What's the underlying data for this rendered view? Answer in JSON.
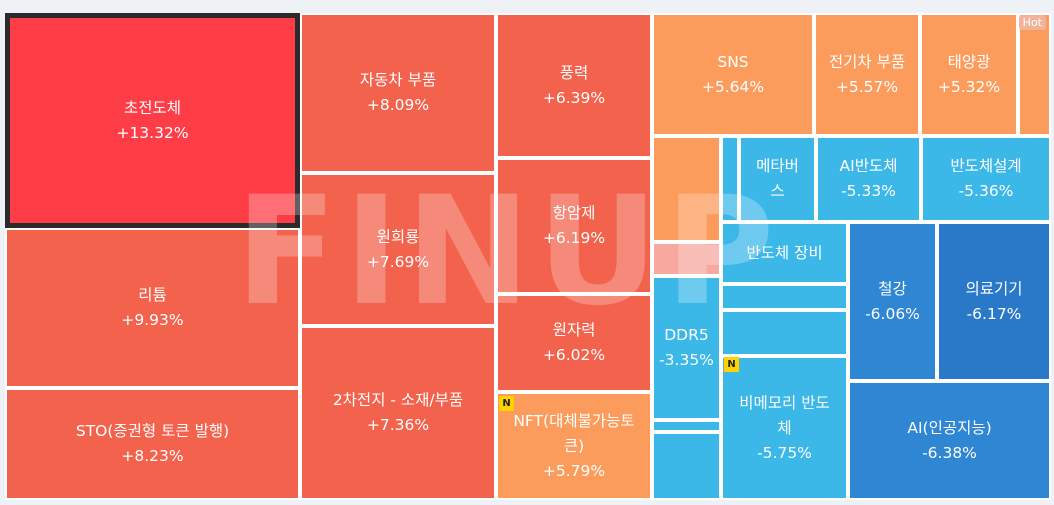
{
  "badges": {
    "new": "N",
    "hot": "Hot"
  },
  "watermark": "FINUP",
  "tiles": [
    {
      "name": "초전도체",
      "change": "+13.32%"
    },
    {
      "name": "리튬",
      "change": "+9.93%"
    },
    {
      "name": "STO(증권형 토큰 발행)",
      "change": "+8.23%"
    },
    {
      "name": "자동차 부품",
      "change": "+8.09%"
    },
    {
      "name": "원희룡",
      "change": "+7.69%"
    },
    {
      "name": "2차전지 - 소재/부품",
      "change": "+7.36%"
    },
    {
      "name": "풍력",
      "change": "+6.39%"
    },
    {
      "name": "항암제",
      "change": "+6.19%"
    },
    {
      "name": "원자력",
      "change": "+6.02%"
    },
    {
      "name": "NFT(대체불가능토큰)",
      "change": "+5.79%"
    },
    {
      "name": "SNS",
      "change": "+5.64%"
    },
    {
      "name": "전기차 부품",
      "change": "+5.57%"
    },
    {
      "name": "태양광",
      "change": "+5.32%"
    },
    {
      "name": "메타버스",
      "change": ""
    },
    {
      "name": "AI반도체",
      "change": "-5.33%"
    },
    {
      "name": "반도체설계",
      "change": "-5.36%"
    },
    {
      "name": "반도체 장비",
      "change": ""
    },
    {
      "name": "DDR5",
      "change": "-3.35%"
    },
    {
      "name": "철강",
      "change": "-6.06%"
    },
    {
      "name": "의료기기",
      "change": "-6.17%"
    },
    {
      "name": "비메모리 반도체",
      "change": "-5.75%"
    },
    {
      "name": "AI(인공지능)",
      "change": "-6.38%"
    }
  ],
  "colors": {
    "strong_up": "#ff3d46",
    "up": "#f3624c",
    "mild_up": "#fc9c5c",
    "mild_down": "#3cb8e8",
    "down": "#2f86d2",
    "selected_border": "#2b2b2b"
  }
}
